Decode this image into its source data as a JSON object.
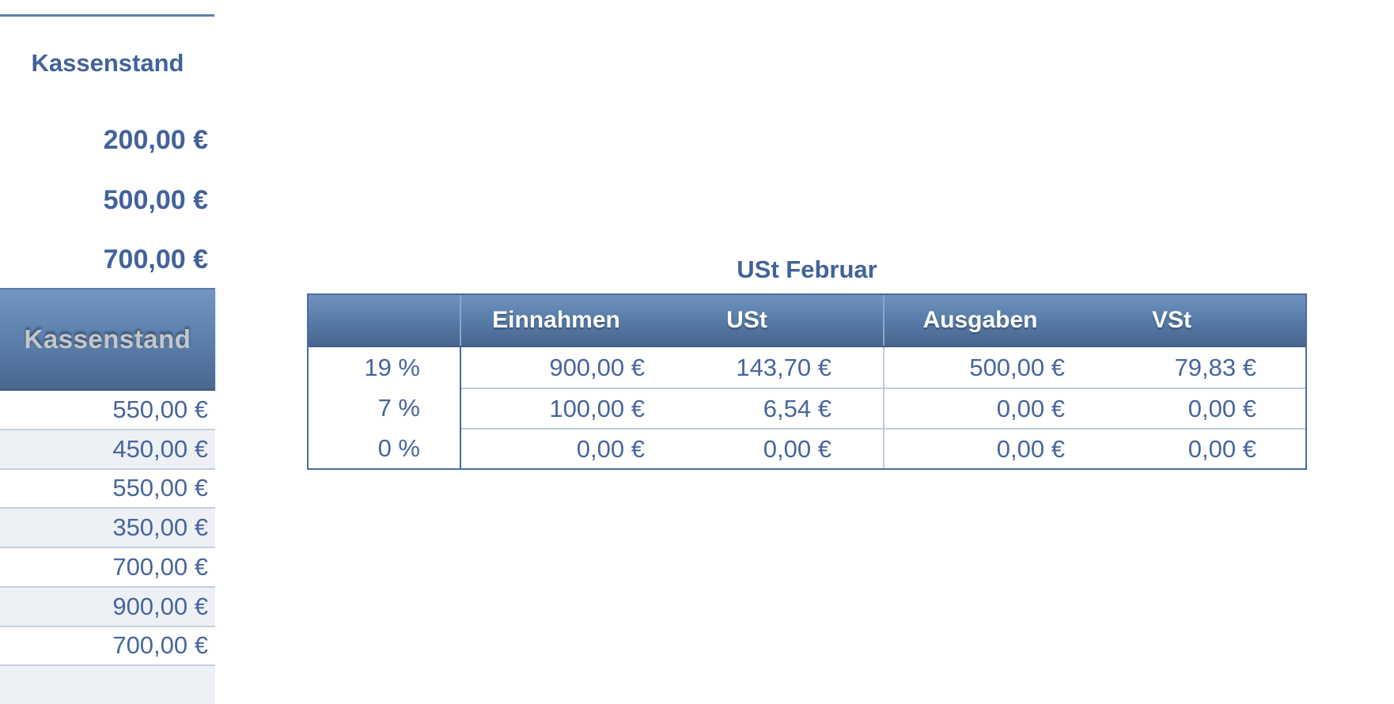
{
  "left_panel": {
    "title": "Kassenstand",
    "summary_values": [
      "200,00 €",
      "500,00 €",
      "700,00 €"
    ],
    "band_header": "Kassenstand",
    "rows": [
      "550,00 €",
      "450,00 €",
      "550,00 €",
      "350,00 €",
      "700,00 €",
      "900,00 €",
      "700,00 €",
      ""
    ]
  },
  "ust_table": {
    "title": "USt Februar",
    "columns": [
      "Einnahmen",
      "USt",
      "Ausgaben",
      "VSt"
    ],
    "rows": [
      {
        "label": "19 %",
        "einnahmen": "900,00 €",
        "ust": "143,70 €",
        "ausgaben": "500,00 €",
        "vst": "79,83 €"
      },
      {
        "label": "7 %",
        "einnahmen": "100,00 €",
        "ust": "6,54 €",
        "ausgaben": "0,00 €",
        "vst": "0,00 €"
      },
      {
        "label": "0 %",
        "einnahmen": "0,00 €",
        "ust": "0,00 €",
        "ausgaben": "0,00 €",
        "vst": "0,00 €"
      }
    ]
  },
  "colors": {
    "accent_text_blue": "#46659C",
    "title_blue": "#42629B",
    "header_gradient_top": "#6E93BE",
    "header_gradient_bottom": "#47658D",
    "table_border": "#4A6D9B",
    "row_divider_light": "#BECDDF",
    "alt_row_background": "#EDF1F6",
    "band_embossed_text": "#C3C6CB",
    "top_rule": "#5F83B2"
  }
}
